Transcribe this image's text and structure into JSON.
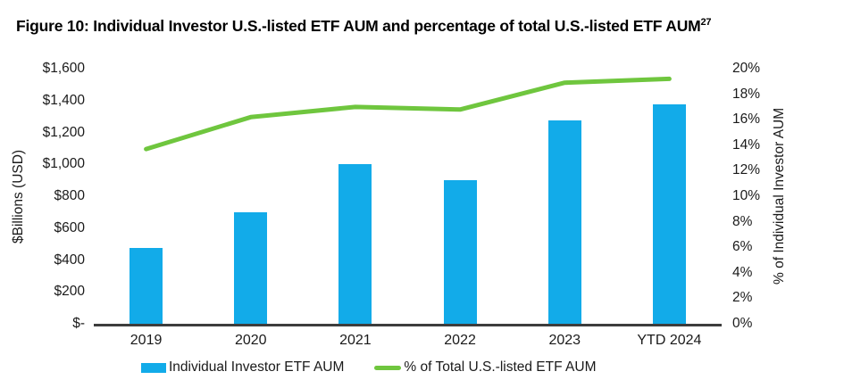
{
  "title": {
    "text": "Figure 10: Individual Investor U.S.-listed ETF AUM and percentage of total U.S.-listed ETF AUM",
    "footnote_marker": "27"
  },
  "chart_data": {
    "type": "bar",
    "subtype": "combo-bar-line",
    "categories": [
      "2019",
      "2020",
      "2021",
      "2022",
      "2023",
      "YTD 2024"
    ],
    "series": [
      {
        "name": "Individual Investor ETF AUM",
        "type": "bar",
        "axis": "left",
        "color": "#12ABE9",
        "values": [
          475,
          700,
          1000,
          900,
          1275,
          1375
        ]
      },
      {
        "name": "% of Total U.S.-listed ETF AUM",
        "type": "line",
        "axis": "right",
        "color": "#6FC63E",
        "values": [
          13.7,
          16.2,
          17.0,
          16.8,
          18.9,
          19.2
        ]
      }
    ],
    "left_axis": {
      "label": "$Billions (USD)",
      "min": 0,
      "max": 1600,
      "ticks": [
        "$-",
        "$200",
        "$400",
        "$600",
        "$800",
        "$1,000",
        "$1,200",
        "$1,400",
        "$1,600"
      ]
    },
    "right_axis": {
      "label": "% of Individual Investor AUM",
      "min": 0,
      "max": 20,
      "ticks": [
        "0%",
        "2%",
        "4%",
        "6%",
        "8%",
        "10%",
        "12%",
        "14%",
        "16%",
        "18%",
        "20%"
      ]
    },
    "grid": false,
    "legend_position": "bottom",
    "axis_line_color": "#3d3d3d"
  }
}
